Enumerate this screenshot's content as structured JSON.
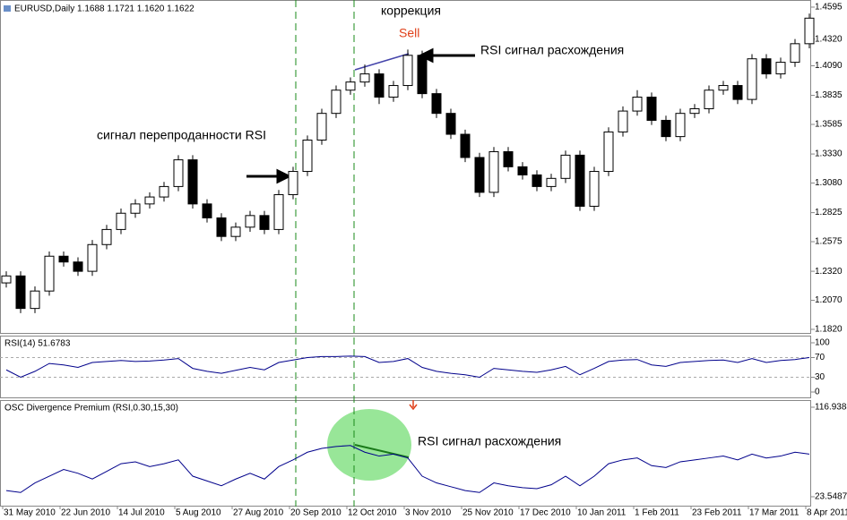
{
  "chart_data": [
    {
      "type": "candlestick",
      "title": "EURUSD,Daily  1.1688 1.1721 1.1620 1.1622",
      "x": [
        1,
        5,
        9,
        13,
        17,
        21,
        25,
        29,
        33,
        37,
        41,
        45,
        49,
        53,
        57,
        61,
        65,
        69,
        73,
        77,
        81,
        85,
        89,
        93,
        97,
        101,
        105,
        109,
        113,
        117,
        121,
        125,
        129,
        133,
        137,
        141,
        145,
        149,
        153,
        157,
        161,
        165,
        169,
        173,
        177,
        181,
        185,
        189,
        193,
        197,
        201,
        205,
        209,
        213,
        217,
        221,
        225
      ],
      "open": [
        1.222,
        1.228,
        1.2,
        1.215,
        1.245,
        1.24,
        1.232,
        1.255,
        1.268,
        1.282,
        1.29,
        1.296,
        1.305,
        1.328,
        1.29,
        1.278,
        1.262,
        1.27,
        1.28,
        1.268,
        1.298,
        1.318,
        1.345,
        1.368,
        1.388,
        1.395,
        1.402,
        1.382,
        1.392,
        1.418,
        1.385,
        1.368,
        1.35,
        1.33,
        1.3,
        1.335,
        1.322,
        1.315,
        1.305,
        1.312,
        1.332,
        1.288,
        1.318,
        1.352,
        1.37,
        1.382,
        1.362,
        1.348,
        1.368,
        1.372,
        1.388,
        1.392,
        1.38,
        1.415,
        1.402,
        1.412,
        1.428
      ],
      "high": [
        1.232,
        1.232,
        1.219,
        1.249,
        1.249,
        1.244,
        1.259,
        1.272,
        1.286,
        1.294,
        1.3,
        1.309,
        1.332,
        1.332,
        1.294,
        1.282,
        1.274,
        1.284,
        1.284,
        1.302,
        1.322,
        1.349,
        1.372,
        1.392,
        1.399,
        1.41,
        1.406,
        1.396,
        1.423,
        1.422,
        1.389,
        1.372,
        1.354,
        1.334,
        1.339,
        1.339,
        1.326,
        1.319,
        1.316,
        1.336,
        1.336,
        1.322,
        1.356,
        1.374,
        1.388,
        1.386,
        1.366,
        1.372,
        1.376,
        1.392,
        1.396,
        1.396,
        1.419,
        1.419,
        1.416,
        1.432,
        1.454
      ],
      "low": [
        1.218,
        1.196,
        1.196,
        1.211,
        1.236,
        1.228,
        1.228,
        1.251,
        1.264,
        1.278,
        1.286,
        1.292,
        1.301,
        1.286,
        1.274,
        1.258,
        1.258,
        1.266,
        1.264,
        1.264,
        1.294,
        1.314,
        1.341,
        1.364,
        1.384,
        1.391,
        1.376,
        1.378,
        1.388,
        1.381,
        1.364,
        1.346,
        1.326,
        1.296,
        1.296,
        1.318,
        1.311,
        1.301,
        1.301,
        1.308,
        1.284,
        1.284,
        1.314,
        1.348,
        1.366,
        1.358,
        1.344,
        1.344,
        1.364,
        1.368,
        1.384,
        1.376,
        1.376,
        1.398,
        1.398,
        1.408,
        1.424
      ],
      "close": [
        1.228,
        1.2,
        1.215,
        1.245,
        1.24,
        1.232,
        1.255,
        1.268,
        1.282,
        1.29,
        1.296,
        1.305,
        1.328,
        1.29,
        1.278,
        1.262,
        1.27,
        1.28,
        1.268,
        1.298,
        1.318,
        1.345,
        1.368,
        1.388,
        1.395,
        1.402,
        1.382,
        1.392,
        1.418,
        1.385,
        1.368,
        1.35,
        1.33,
        1.3,
        1.335,
        1.322,
        1.315,
        1.305,
        1.312,
        1.332,
        1.288,
        1.318,
        1.352,
        1.37,
        1.382,
        1.362,
        1.348,
        1.368,
        1.372,
        1.388,
        1.392,
        1.38,
        1.415,
        1.402,
        1.412,
        1.428,
        1.45
      ],
      "up_color": "#ffffff",
      "down_color": "#000000",
      "xlim": [
        -0.75,
        225.5
      ],
      "ylim": [
        1.1789,
        1.4641
      ],
      "yticks": [
        1.4595,
        {
          "value": 1.432,
          "label": "1.4320"
        },
        {
          "value": 1.409,
          "label": "1.4090"
        },
        1.3835,
        1.3585,
        {
          "value": 1.333,
          "label": "1.3330"
        },
        {
          "value": 1.308,
          "label": "1.3080"
        },
        1.2825,
        1.2575,
        {
          "value": 1.232,
          "label": "1.2320"
        },
        {
          "value": 1.207,
          "label": "1.2070"
        },
        {
          "value": 1.182,
          "label": "1.1820"
        }
      ],
      "annotations": [
        "коррекция",
        "Sell",
        "RSI сигнал расхождения",
        "сигнал перепроданности RSI"
      ]
    },
    {
      "type": "line",
      "title": "RSI(14) 51.6783",
      "color": "#00008b",
      "x": [
        1,
        5,
        9,
        13,
        17,
        21,
        25,
        29,
        33,
        37,
        41,
        45,
        49,
        53,
        57,
        61,
        65,
        69,
        73,
        77,
        81,
        85,
        89,
        93,
        97,
        101,
        105,
        109,
        113,
        117,
        121,
        125,
        129,
        133,
        137,
        141,
        145,
        149,
        153,
        157,
        161,
        165,
        169,
        173,
        177,
        181,
        185,
        189,
        193,
        197,
        201,
        205,
        209,
        213,
        217,
        221,
        225
      ],
      "values": [
        45,
        30,
        42,
        58,
        55,
        50,
        60,
        62,
        64,
        62,
        63,
        65,
        68,
        48,
        42,
        38,
        44,
        50,
        45,
        60,
        65,
        70,
        72,
        72,
        73,
        72,
        60,
        62,
        68,
        50,
        42,
        38,
        35,
        30,
        48,
        45,
        42,
        40,
        45,
        52,
        35,
        48,
        62,
        65,
        66,
        55,
        52,
        60,
        62,
        64,
        65,
        60,
        68,
        60,
        64,
        66,
        70
      ],
      "xlim": [
        -0.75,
        225.5
      ],
      "ylim": [
        -10.9,
        112.7
      ],
      "yticks": [
        100,
        70,
        30,
        0
      ],
      "levels": [
        70,
        30
      ]
    },
    {
      "type": "line",
      "title": "OSC Divergence Premium (RSI,0.30,15,30)",
      "color": "#00008b",
      "x": [
        1,
        5,
        9,
        13,
        17,
        21,
        25,
        29,
        33,
        37,
        41,
        45,
        49,
        53,
        57,
        61,
        65,
        69,
        73,
        77,
        81,
        85,
        89,
        93,
        97,
        101,
        105,
        109,
        113,
        117,
        121,
        125,
        129,
        133,
        137,
        141,
        145,
        149,
        153,
        157,
        161,
        165,
        169,
        173,
        177,
        181,
        185,
        189,
        193,
        197,
        201,
        205,
        209,
        213,
        217,
        221,
        225
      ],
      "values": [
        30,
        28,
        38,
        45,
        52,
        48,
        42,
        50,
        58,
        60,
        55,
        58,
        62,
        45,
        40,
        35,
        42,
        48,
        42,
        55,
        62,
        70,
        74,
        76,
        77,
        70,
        66,
        68,
        64,
        45,
        38,
        34,
        30,
        28,
        38,
        35,
        33,
        32,
        36,
        45,
        35,
        45,
        58,
        62,
        64,
        56,
        54,
        60,
        62,
        64,
        66,
        62,
        68,
        64,
        66,
        70,
        68
      ],
      "xlim": [
        -0.75,
        225.5
      ],
      "ylim": [
        14.21,
        123.48
      ],
      "yticks": [
        116.9388,
        23.5487
      ],
      "annotations": [
        "RSI сигнал расхождения"
      ],
      "xticks": [
        {
          "value": 0,
          "label": "31 May 2010"
        },
        {
          "value": 16,
          "label": "22 Jun 2010"
        },
        {
          "value": 32,
          "label": "14 Jul 2010"
        },
        {
          "value": 48,
          "label": "5 Aug 2010"
        },
        {
          "value": 64,
          "label": "27 Aug 2010"
        },
        {
          "value": 80,
          "label": "20 Sep 2010"
        },
        {
          "value": 96,
          "label": "12 Oct 2010"
        },
        {
          "value": 112,
          "label": "3 Nov 2010"
        },
        {
          "value": 128,
          "label": "25 Nov 2010"
        },
        {
          "value": 144,
          "label": "17 Dec 2010"
        },
        {
          "value": 160,
          "label": "10 Jan 2011"
        },
        {
          "value": 176,
          "label": "1 Feb 2011"
        },
        {
          "value": 192,
          "label": "23 Feb 2011"
        },
        {
          "value": 208,
          "label": "17 Mar 2011"
        },
        {
          "value": 224,
          "label": "8 Apr 2011"
        }
      ]
    }
  ]
}
